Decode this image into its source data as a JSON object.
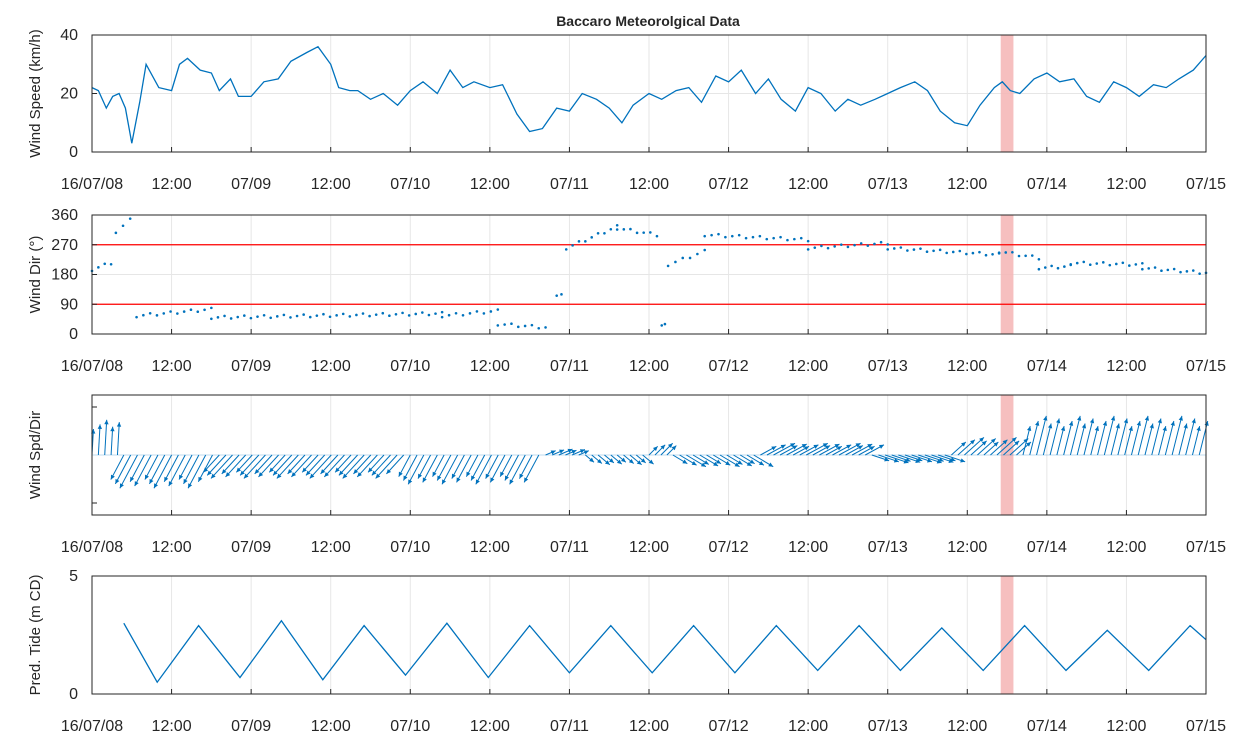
{
  "title": "Baccaro Meteorolgical Data",
  "colors": {
    "series": "#0072BD",
    "threshold": "#FF0000",
    "highlight": "#F4B4B4",
    "grid": "#E6E6E6",
    "axis": "#262626"
  },
  "chart_data": [
    {
      "type": "line",
      "ylabel": "Wind Speed (km/h)",
      "ylim": [
        0,
        40
      ],
      "yticks": [
        0,
        20,
        40
      ],
      "xlim": [
        0,
        7
      ],
      "xtick_labels": [
        "16/07/08",
        "12:00",
        "07/09",
        "12:00",
        "07/10",
        "12:00",
        "07/11",
        "12:00",
        "07/12",
        "12:00",
        "07/13",
        "12:00",
        "07/14",
        "12:00",
        "07/15"
      ],
      "grid": true,
      "highlight_x": [
        5.71,
        5.79
      ],
      "x": [
        0,
        0.04,
        0.09,
        0.13,
        0.17,
        0.21,
        0.25,
        0.3,
        0.34,
        0.42,
        0.5,
        0.55,
        0.6,
        0.68,
        0.75,
        0.8,
        0.87,
        0.92,
        1.0,
        1.08,
        1.17,
        1.25,
        1.35,
        1.42,
        1.5,
        1.55,
        1.62,
        1.67,
        1.75,
        1.83,
        1.92,
        2.0,
        2.08,
        2.17,
        2.25,
        2.33,
        2.4,
        2.5,
        2.58,
        2.67,
        2.75,
        2.83,
        2.92,
        3.0,
        3.08,
        3.17,
        3.25,
        3.33,
        3.4,
        3.5,
        3.58,
        3.67,
        3.75,
        3.83,
        3.92,
        4.0,
        4.08,
        4.17,
        4.25,
        4.33,
        4.42,
        4.5,
        4.58,
        4.67,
        4.75,
        4.83,
        4.92,
        5.0,
        5.08,
        5.17,
        5.25,
        5.33,
        5.42,
        5.5,
        5.58,
        5.67,
        5.72,
        5.77,
        5.83,
        5.92,
        6.0,
        6.08,
        6.17,
        6.25,
        6.33,
        6.42,
        6.5,
        6.58,
        6.67,
        6.75,
        6.83,
        6.92,
        7.0
      ],
      "values": [
        22,
        21,
        15,
        19,
        20,
        15,
        3,
        17,
        30,
        22,
        21,
        30,
        32,
        28,
        27,
        21,
        25,
        19,
        19,
        24,
        25,
        31,
        34,
        36,
        30,
        22,
        21,
        21,
        18,
        20,
        16,
        21,
        24,
        20,
        28,
        22,
        24,
        22,
        23,
        13,
        7,
        8,
        15,
        14,
        20,
        18,
        15,
        10,
        16,
        20,
        18,
        21,
        22,
        17,
        26,
        24,
        28,
        20,
        25,
        18,
        14,
        22,
        20,
        14,
        18,
        16,
        18,
        20,
        22,
        24,
        21,
        14,
        10,
        9,
        16,
        22,
        24,
        21,
        20,
        25,
        27,
        24,
        25,
        19,
        17,
        24,
        22,
        19,
        23,
        22,
        25,
        28,
        33
      ]
    },
    {
      "type": "scatter",
      "ylabel": "Wind Dir (°)",
      "ylim": [
        0,
        360
      ],
      "yticks": [
        0,
        90,
        180,
        270,
        360
      ],
      "xlim": [
        0,
        7
      ],
      "xtick_labels": [
        "16/07/08",
        "12:00",
        "07/09",
        "12:00",
        "07/10",
        "12:00",
        "07/11",
        "12:00",
        "07/12",
        "12:00",
        "07/13",
        "12:00",
        "07/14",
        "12:00",
        "07/15"
      ],
      "grid": true,
      "reference_lines": [
        90,
        270
      ],
      "highlight_x": [
        5.71,
        5.79
      ],
      "segments": [
        {
          "x_start": 0.0,
          "x_end": 0.12,
          "y_start": 195,
          "y_end": 215
        },
        {
          "x_start": 0.15,
          "x_end": 0.24,
          "y_start": 310,
          "y_end": 345
        },
        {
          "x_start": 0.28,
          "x_end": 0.75,
          "y_start": 55,
          "y_end": 75
        },
        {
          "x_start": 0.75,
          "x_end": 2.2,
          "y_start": 50,
          "y_end": 62
        },
        {
          "x_start": 2.2,
          "x_end": 2.55,
          "y_start": 55,
          "y_end": 70
        },
        {
          "x_start": 2.55,
          "x_end": 2.85,
          "y_start": 30,
          "y_end": 20
        },
        {
          "x_start": 2.92,
          "x_end": 2.95,
          "y_start": 120,
          "y_end": 120
        },
        {
          "x_start": 2.98,
          "x_end": 3.3,
          "y_start": 260,
          "y_end": 325
        },
        {
          "x_start": 3.3,
          "x_end": 3.55,
          "y_start": 320,
          "y_end": 300
        },
        {
          "x_start": 3.58,
          "x_end": 3.6,
          "y_start": 30,
          "y_end": 30
        },
        {
          "x_start": 3.62,
          "x_end": 3.85,
          "y_start": 210,
          "y_end": 250
        },
        {
          "x_start": 3.85,
          "x_end": 4.5,
          "y_start": 300,
          "y_end": 285
        },
        {
          "x_start": 4.5,
          "x_end": 5.0,
          "y_start": 260,
          "y_end": 275
        },
        {
          "x_start": 5.0,
          "x_end": 5.7,
          "y_start": 260,
          "y_end": 240
        },
        {
          "x_start": 5.7,
          "x_end": 5.95,
          "y_start": 250,
          "y_end": 230
        },
        {
          "x_start": 5.95,
          "x_end": 6.15,
          "y_start": 200,
          "y_end": 205
        },
        {
          "x_start": 6.15,
          "x_end": 6.6,
          "y_start": 215,
          "y_end": 210
        },
        {
          "x_start": 6.6,
          "x_end": 7.0,
          "y_start": 200,
          "y_end": 185
        }
      ]
    },
    {
      "type": "quiver",
      "ylabel": "Wind Spd/Dir",
      "xlim": [
        0,
        7
      ],
      "xtick_labels": [
        "16/07/08",
        "12:00",
        "07/09",
        "12:00",
        "07/10",
        "12:00",
        "07/11",
        "12:00",
        "07/12",
        "12:00",
        "07/13",
        "12:00",
        "07/14",
        "12:00",
        "07/15"
      ],
      "grid": true,
      "highlight_x": [
        5.71,
        5.79
      ],
      "vectors": [
        {
          "x_start": 0.0,
          "x_end": 0.2,
          "u": 0.05,
          "v": 0.9
        },
        {
          "x_start": 0.2,
          "x_end": 0.8,
          "u": -0.45,
          "v": -0.85
        },
        {
          "x_start": 0.8,
          "x_end": 2.0,
          "u": -0.55,
          "v": -0.6
        },
        {
          "x_start": 2.0,
          "x_end": 2.85,
          "u": -0.4,
          "v": -0.75
        },
        {
          "x_start": 2.85,
          "x_end": 3.1,
          "u": 0.35,
          "v": 0.15
        },
        {
          "x_start": 3.1,
          "x_end": 3.5,
          "u": 0.3,
          "v": -0.25
        },
        {
          "x_start": 3.5,
          "x_end": 3.65,
          "u": 0.3,
          "v": 0.3
        },
        {
          "x_start": 3.65,
          "x_end": 4.2,
          "u": 0.5,
          "v": -0.3
        },
        {
          "x_start": 4.2,
          "x_end": 4.9,
          "u": 0.55,
          "v": 0.3
        },
        {
          "x_start": 4.9,
          "x_end": 5.4,
          "u": 0.6,
          "v": -0.2
        },
        {
          "x_start": 5.4,
          "x_end": 5.85,
          "u": 0.5,
          "v": 0.45
        },
        {
          "x_start": 5.85,
          "x_end": 7.0,
          "u": 0.25,
          "v": 1.0
        }
      ]
    },
    {
      "type": "line",
      "ylabel": "Pred. Tide (m CD)",
      "ylim": [
        0,
        5
      ],
      "yticks": [
        0,
        5
      ],
      "xlim": [
        0,
        7
      ],
      "xtick_labels": [
        "16/07/08",
        "12:00",
        "07/09",
        "12:00",
        "07/10",
        "12:00",
        "07/11",
        "12:00",
        "07/12",
        "12:00",
        "07/13",
        "12:00",
        "07/14",
        "12:00",
        "07/15"
      ],
      "grid": true,
      "highlight_x": [
        5.71,
        5.79
      ],
      "x": [
        0.2,
        0.41,
        0.67,
        0.93,
        1.19,
        1.45,
        1.71,
        1.97,
        2.23,
        2.49,
        2.75,
        3.0,
        3.26,
        3.52,
        3.78,
        4.04,
        4.3,
        4.56,
        4.82,
        5.08,
        5.34,
        5.6,
        5.86,
        6.12,
        6.38,
        6.64,
        6.9,
        7.0
      ],
      "values": [
        3.0,
        0.5,
        2.9,
        0.7,
        3.1,
        0.6,
        2.9,
        0.8,
        3.0,
        0.7,
        2.9,
        0.9,
        2.9,
        0.9,
        2.9,
        0.9,
        2.9,
        1.0,
        2.9,
        1.0,
        2.8,
        1.0,
        2.9,
        1.0,
        2.7,
        1.0,
        2.9,
        2.3
      ]
    }
  ]
}
